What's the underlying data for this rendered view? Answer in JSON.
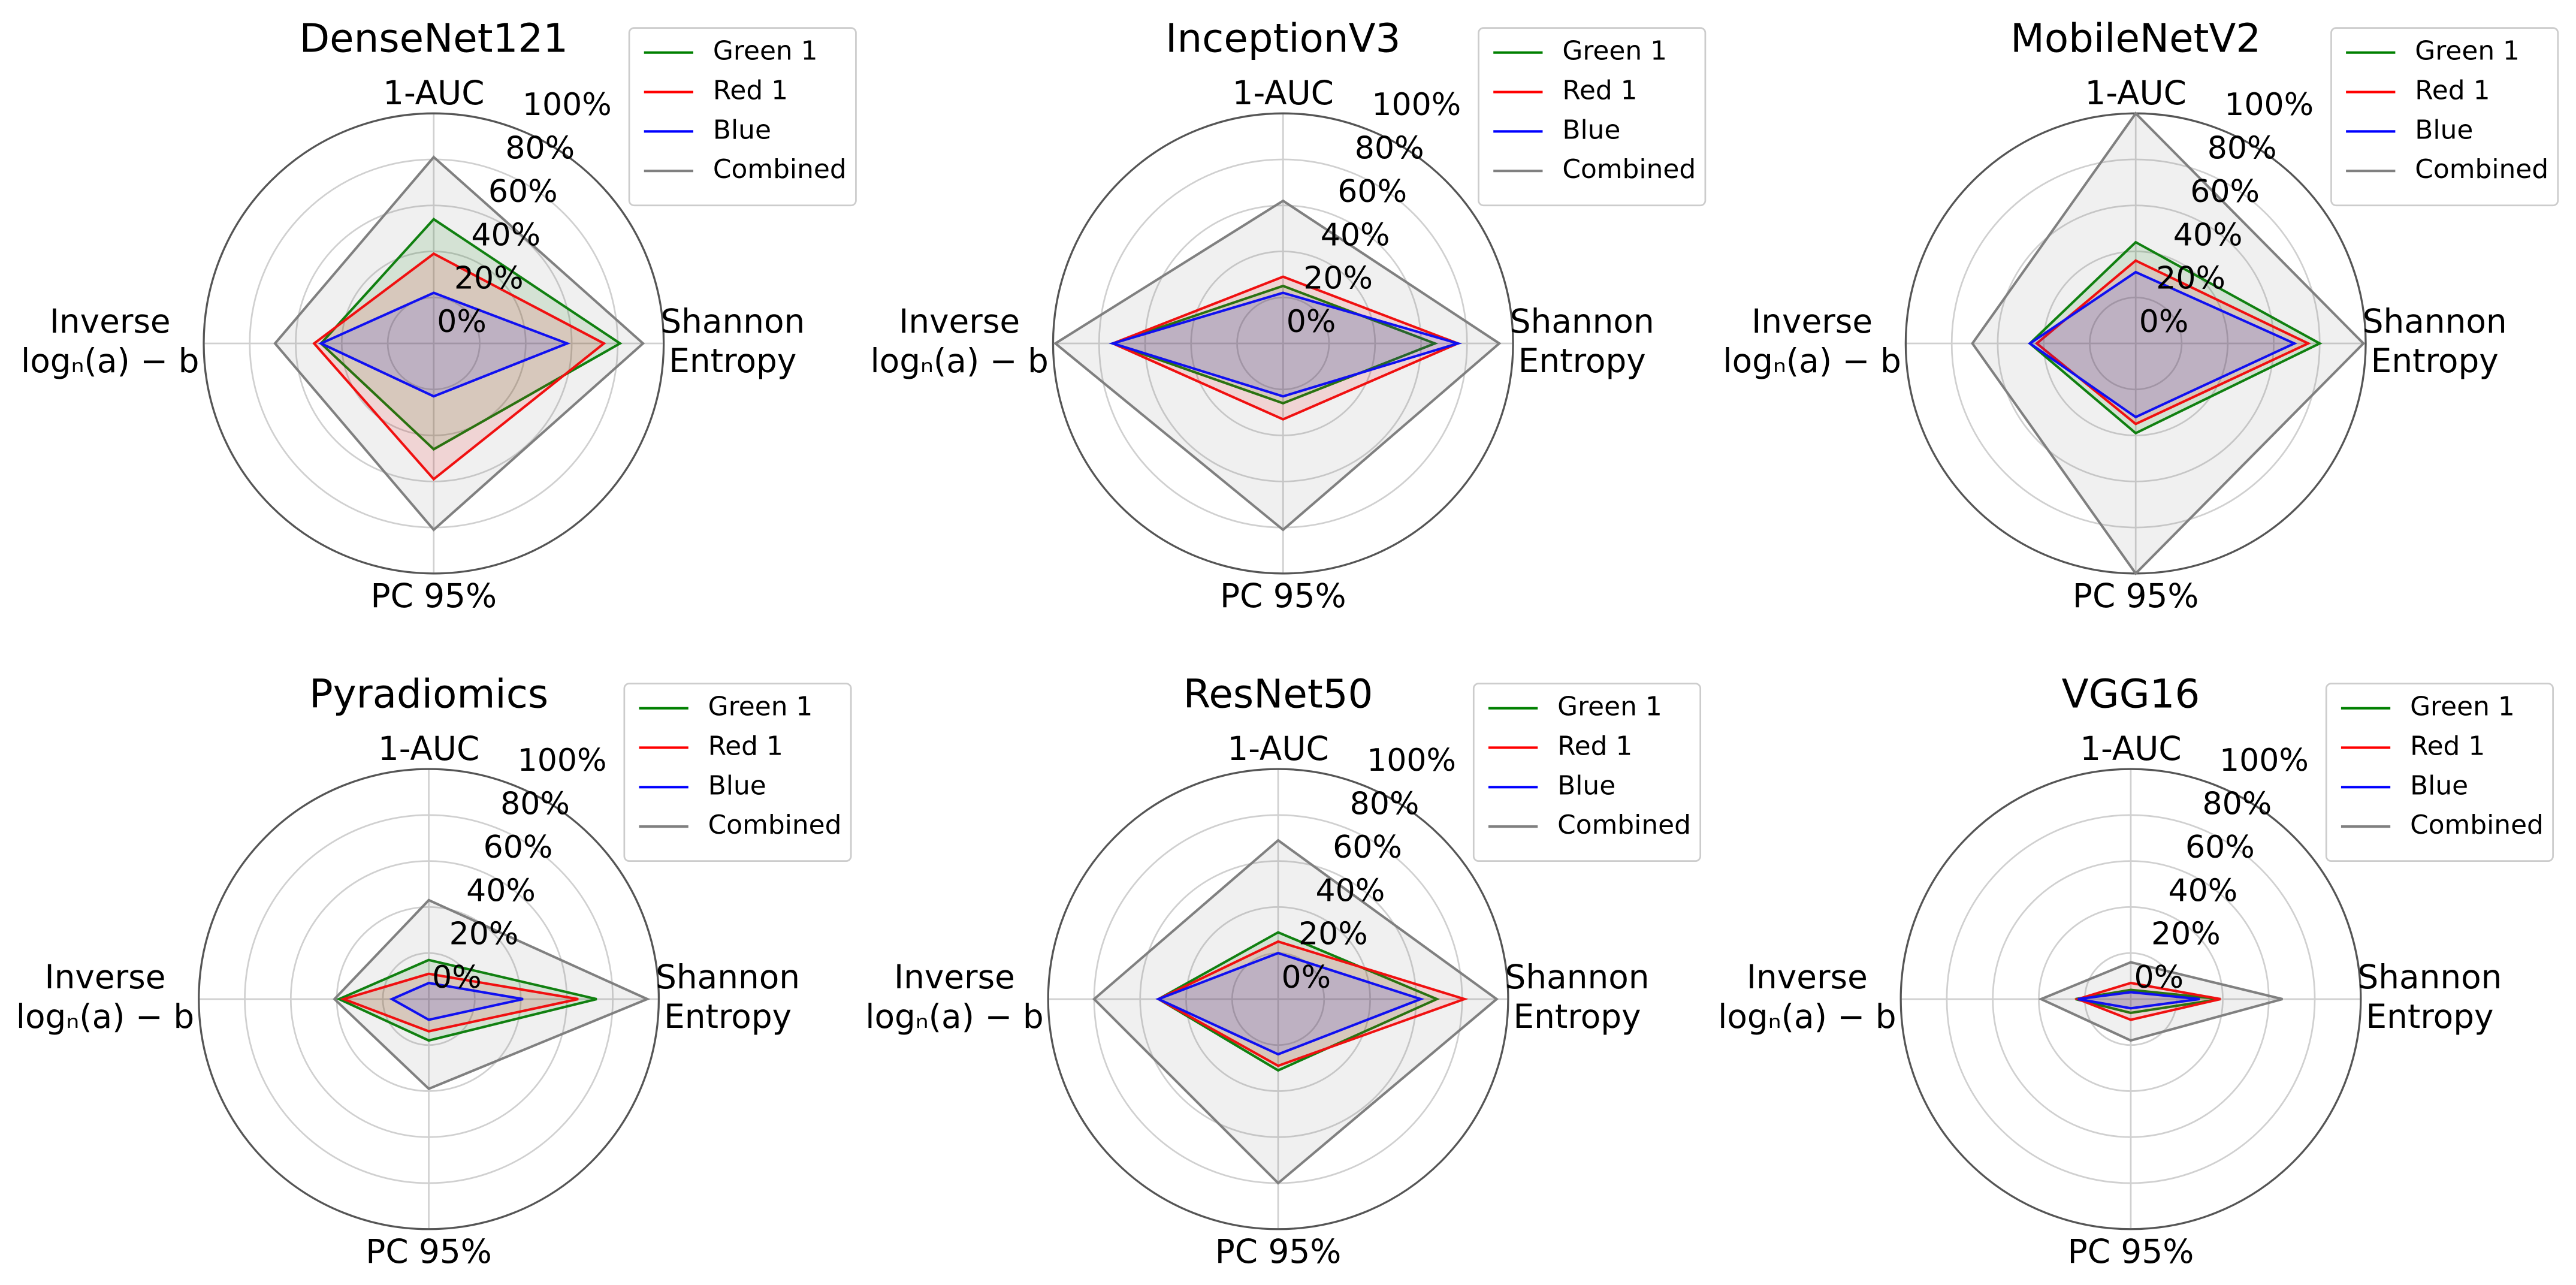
{
  "chart_data": [
    {
      "type": "radar",
      "title": "DenseNet121",
      "categories": [
        "1-AUC",
        "Shannon\nEntropy",
        "PC 95%",
        "Inverse\nlogₙ(a) − b"
      ],
      "rlim": [
        0,
        100
      ],
      "rticks": [
        {
          "value": 0,
          "label": "0%"
        },
        {
          "value": 20,
          "label": "20%"
        },
        {
          "value": 40,
          "label": "40%"
        },
        {
          "value": 60,
          "label": "60%"
        },
        {
          "value": 80,
          "label": "80%"
        },
        {
          "value": 100,
          "label": "100%"
        }
      ],
      "series": [
        {
          "name": "Green 1",
          "color": "#008000",
          "values": [
            54,
            81,
            46,
            49
          ]
        },
        {
          "name": "Red 1",
          "color": "#ff0000",
          "values": [
            39,
            74,
            59,
            52
          ]
        },
        {
          "name": "Blue",
          "color": "#0000ff",
          "values": [
            22,
            58,
            23,
            49
          ]
        },
        {
          "name": "Combined",
          "color": "#808080",
          "values": [
            81,
            91,
            81,
            69
          ]
        }
      ]
    },
    {
      "type": "radar",
      "title": "InceptionV3",
      "categories": [
        "1-AUC",
        "Shannon\nEntropy",
        "PC 95%",
        "Inverse\nlogₙ(a) − b"
      ],
      "rlim": [
        0,
        100
      ],
      "rticks": [
        {
          "value": 0,
          "label": "0%"
        },
        {
          "value": 20,
          "label": "20%"
        },
        {
          "value": 40,
          "label": "40%"
        },
        {
          "value": 60,
          "label": "60%"
        },
        {
          "value": 80,
          "label": "80%"
        },
        {
          "value": 100,
          "label": "100%"
        }
      ],
      "series": [
        {
          "name": "Green 1",
          "color": "#008000",
          "values": [
            25,
            66,
            26,
            74
          ]
        },
        {
          "name": "Red 1",
          "color": "#ff0000",
          "values": [
            29,
            76,
            33,
            74
          ]
        },
        {
          "name": "Blue",
          "color": "#0000ff",
          "values": [
            22,
            76,
            23,
            74
          ]
        },
        {
          "name": "Combined",
          "color": "#808080",
          "values": [
            62,
            94,
            81,
            99
          ]
        }
      ]
    },
    {
      "type": "radar",
      "title": "MobileNetV2",
      "categories": [
        "1-AUC",
        "Shannon\nEntropy",
        "PC 95%",
        "Inverse\nlogₙ(a) − b"
      ],
      "rlim": [
        0,
        100
      ],
      "rticks": [
        {
          "value": 0,
          "label": "0%"
        },
        {
          "value": 20,
          "label": "20%"
        },
        {
          "value": 40,
          "label": "40%"
        },
        {
          "value": 60,
          "label": "60%"
        },
        {
          "value": 80,
          "label": "80%"
        },
        {
          "value": 100,
          "label": "100%"
        }
      ],
      "series": [
        {
          "name": "Green 1",
          "color": "#008000",
          "values": [
            44,
            80,
            39,
            46
          ]
        },
        {
          "name": "Red 1",
          "color": "#ff0000",
          "values": [
            36,
            75,
            35,
            43
          ]
        },
        {
          "name": "Blue",
          "color": "#0000ff",
          "values": [
            31,
            69,
            32,
            46
          ]
        },
        {
          "name": "Combined",
          "color": "#808080",
          "values": [
            100,
            99,
            100,
            71
          ]
        }
      ]
    },
    {
      "type": "radar",
      "title": "Pyradiomics",
      "categories": [
        "1-AUC",
        "Shannon\nEntropy",
        "PC 95%",
        "Inverse\nlogₙ(a) − b"
      ],
      "rlim": [
        0,
        100
      ],
      "rticks": [
        {
          "value": 0,
          "label": "0%"
        },
        {
          "value": 20,
          "label": "20%"
        },
        {
          "value": 40,
          "label": "40%"
        },
        {
          "value": 60,
          "label": "60%"
        },
        {
          "value": 80,
          "label": "80%"
        },
        {
          "value": 100,
          "label": "100%"
        }
      ],
      "series": [
        {
          "name": "Green 1",
          "color": "#008000",
          "values": [
            17,
            73,
            18,
            39
          ]
        },
        {
          "name": "Red 1",
          "color": "#ff0000",
          "values": [
            11,
            65,
            14,
            37
          ]
        },
        {
          "name": "Blue",
          "color": "#0000ff",
          "values": [
            7,
            41,
            9,
            16
          ]
        },
        {
          "name": "Combined",
          "color": "#808080",
          "values": [
            43,
            95,
            39,
            41
          ]
        }
      ]
    },
    {
      "type": "radar",
      "title": "ResNet50",
      "categories": [
        "1-AUC",
        "Shannon\nEntropy",
        "PC 95%",
        "Inverse\nlogₙ(a) − b"
      ],
      "rlim": [
        0,
        100
      ],
      "rticks": [
        {
          "value": 0,
          "label": "0%"
        },
        {
          "value": 20,
          "label": "20%"
        },
        {
          "value": 40,
          "label": "40%"
        },
        {
          "value": 60,
          "label": "60%"
        },
        {
          "value": 80,
          "label": "80%"
        },
        {
          "value": 100,
          "label": "100%"
        }
      ],
      "series": [
        {
          "name": "Green 1",
          "color": "#008000",
          "values": [
            29,
            69,
            31,
            52
          ]
        },
        {
          "name": "Red 1",
          "color": "#ff0000",
          "values": [
            25,
            81,
            29,
            52
          ]
        },
        {
          "name": "Blue",
          "color": "#0000ff",
          "values": [
            20,
            62,
            24,
            52
          ]
        },
        {
          "name": "Combined",
          "color": "#808080",
          "values": [
            69,
            95,
            80,
            80
          ]
        }
      ]
    },
    {
      "type": "radar",
      "title": "VGG16",
      "categories": [
        "1-AUC",
        "Shannon\nEntropy",
        "PC 95%",
        "Inverse\nlogₙ(a) − b"
      ],
      "rlim": [
        0,
        100
      ],
      "rticks": [
        {
          "value": 0,
          "label": "0%"
        },
        {
          "value": 20,
          "label": "20%"
        },
        {
          "value": 40,
          "label": "40%"
        },
        {
          "value": 60,
          "label": "60%"
        },
        {
          "value": 80,
          "label": "80%"
        },
        {
          "value": 100,
          "label": "100%"
        }
      ],
      "series": [
        {
          "name": "Green 1",
          "color": "#008000",
          "values": [
            4,
            39,
            6,
            24
          ]
        },
        {
          "name": "Red 1",
          "color": "#ff0000",
          "values": [
            7,
            39,
            9,
            23
          ]
        },
        {
          "name": "Blue",
          "color": "#0000ff",
          "values": [
            3,
            30,
            4,
            23
          ]
        },
        {
          "name": "Combined",
          "color": "#808080",
          "values": [
            16,
            66,
            18,
            39
          ]
        }
      ]
    }
  ]
}
